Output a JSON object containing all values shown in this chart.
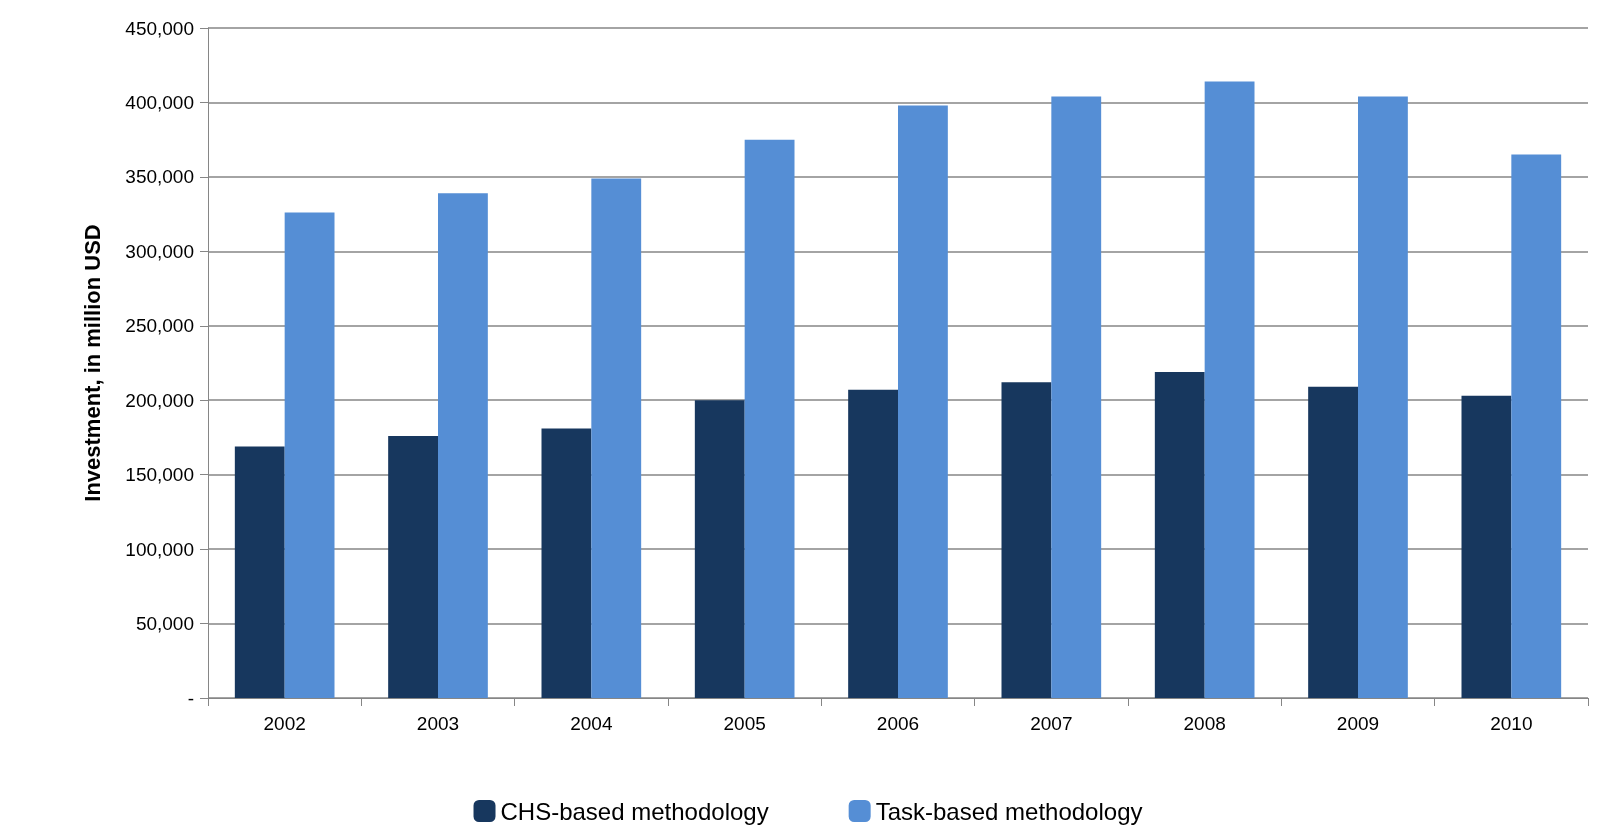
{
  "chart_data": {
    "type": "bar",
    "ylabel": "Investment, in million USD",
    "categories": [
      "2002",
      "2003",
      "2004",
      "2005",
      "2006",
      "2007",
      "2008",
      "2009",
      "2010"
    ],
    "series": [
      {
        "name": "CHS-based methodology",
        "color": "#17375e",
        "values": [
          169000,
          176000,
          181000,
          200000,
          207000,
          212000,
          219000,
          209000,
          203000
        ]
      },
      {
        "name": "Task-based methodology",
        "color": "#558ed5",
        "values": [
          326000,
          339000,
          349000,
          375000,
          398000,
          404000,
          414000,
          404000,
          365000
        ]
      }
    ],
    "ylim": [
      0,
      450000
    ],
    "yticks": [
      {
        "value": 0,
        "label": "-"
      },
      {
        "value": 50000,
        "label": "50,000"
      },
      {
        "value": 100000,
        "label": "100,000"
      },
      {
        "value": 150000,
        "label": "150,000"
      },
      {
        "value": 200000,
        "label": "200,000"
      },
      {
        "value": 250000,
        "label": "250,000"
      },
      {
        "value": 300000,
        "label": "300,000"
      },
      {
        "value": 350000,
        "label": "350,000"
      },
      {
        "value": 400000,
        "label": "400,000"
      },
      {
        "value": 450000,
        "label": "450,000"
      }
    ],
    "grid": "y",
    "legend": "bottom"
  }
}
